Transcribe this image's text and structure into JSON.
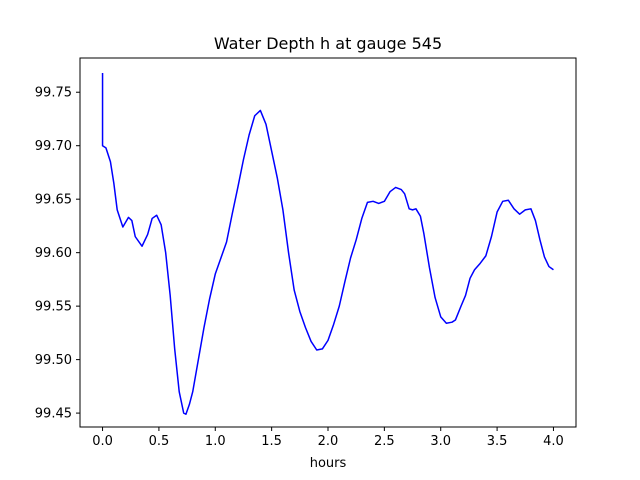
{
  "chart_data": {
    "type": "line",
    "title": "Water Depth h at gauge 545",
    "xlabel": "hours",
    "ylabel": "",
    "xlim": [
      -0.2,
      4.2
    ],
    "ylim": [
      99.437,
      99.782
    ],
    "x_ticks": [
      0.0,
      0.5,
      1.0,
      1.5,
      2.0,
      2.5,
      3.0,
      3.5,
      4.0
    ],
    "x_tick_labels": [
      "0.0",
      "0.5",
      "1.0",
      "1.5",
      "2.0",
      "2.5",
      "3.0",
      "3.5",
      "4.0"
    ],
    "y_ticks": [
      99.45,
      99.5,
      99.55,
      99.6,
      99.65,
      99.7,
      99.75
    ],
    "y_tick_labels": [
      "99.45",
      "99.50",
      "99.55",
      "99.60",
      "99.65",
      "99.70",
      "99.75"
    ],
    "grid": false,
    "series": [
      {
        "color": "#0000ff",
        "points": [
          [
            0.0,
            99.768
          ],
          [
            0.0,
            99.7
          ],
          [
            0.03,
            99.698
          ],
          [
            0.07,
            99.685
          ],
          [
            0.1,
            99.665
          ],
          [
            0.13,
            99.64
          ],
          [
            0.18,
            99.624
          ],
          [
            0.23,
            99.633
          ],
          [
            0.26,
            99.63
          ],
          [
            0.29,
            99.615
          ],
          [
            0.35,
            99.606
          ],
          [
            0.4,
            99.617
          ],
          [
            0.44,
            99.632
          ],
          [
            0.48,
            99.635
          ],
          [
            0.52,
            99.626
          ],
          [
            0.56,
            99.6
          ],
          [
            0.6,
            99.56
          ],
          [
            0.64,
            99.51
          ],
          [
            0.68,
            99.47
          ],
          [
            0.72,
            99.45
          ],
          [
            0.74,
            99.449
          ],
          [
            0.77,
            99.458
          ],
          [
            0.8,
            99.47
          ],
          [
            0.85,
            99.5
          ],
          [
            0.9,
            99.53
          ],
          [
            0.95,
            99.557
          ],
          [
            1.0,
            99.58
          ],
          [
            1.05,
            99.595
          ],
          [
            1.1,
            99.61
          ],
          [
            1.15,
            99.636
          ],
          [
            1.2,
            99.661
          ],
          [
            1.25,
            99.687
          ],
          [
            1.3,
            99.71
          ],
          [
            1.35,
            99.728
          ],
          [
            1.4,
            99.733
          ],
          [
            1.45,
            99.72
          ],
          [
            1.5,
            99.695
          ],
          [
            1.55,
            99.67
          ],
          [
            1.6,
            99.64
          ],
          [
            1.65,
            99.6
          ],
          [
            1.7,
            99.565
          ],
          [
            1.75,
            99.545
          ],
          [
            1.8,
            99.53
          ],
          [
            1.85,
            99.517
          ],
          [
            1.9,
            99.509
          ],
          [
            1.95,
            99.51
          ],
          [
            2.0,
            99.518
          ],
          [
            2.05,
            99.533
          ],
          [
            2.1,
            99.55
          ],
          [
            2.15,
            99.573
          ],
          [
            2.2,
            99.595
          ],
          [
            2.25,
            99.612
          ],
          [
            2.3,
            99.632
          ],
          [
            2.35,
            99.647
          ],
          [
            2.4,
            99.648
          ],
          [
            2.45,
            99.646
          ],
          [
            2.5,
            99.648
          ],
          [
            2.55,
            99.657
          ],
          [
            2.6,
            99.661
          ],
          [
            2.65,
            99.659
          ],
          [
            2.68,
            99.655
          ],
          [
            2.72,
            99.641
          ],
          [
            2.75,
            99.64
          ],
          [
            2.78,
            99.641
          ],
          [
            2.82,
            99.634
          ],
          [
            2.85,
            99.618
          ],
          [
            2.9,
            99.586
          ],
          [
            2.95,
            99.558
          ],
          [
            3.0,
            99.54
          ],
          [
            3.05,
            99.534
          ],
          [
            3.1,
            99.535
          ],
          [
            3.13,
            99.537
          ],
          [
            3.18,
            99.55
          ],
          [
            3.22,
            99.56
          ],
          [
            3.26,
            99.576
          ],
          [
            3.3,
            99.584
          ],
          [
            3.35,
            99.59
          ],
          [
            3.4,
            99.597
          ],
          [
            3.45,
            99.615
          ],
          [
            3.5,
            99.638
          ],
          [
            3.55,
            99.648
          ],
          [
            3.6,
            99.649
          ],
          [
            3.65,
            99.641
          ],
          [
            3.7,
            99.636
          ],
          [
            3.75,
            99.64
          ],
          [
            3.8,
            99.641
          ],
          [
            3.84,
            99.63
          ],
          [
            3.88,
            99.612
          ],
          [
            3.92,
            99.596
          ],
          [
            3.96,
            99.587
          ],
          [
            4.0,
            99.584
          ]
        ]
      }
    ]
  }
}
